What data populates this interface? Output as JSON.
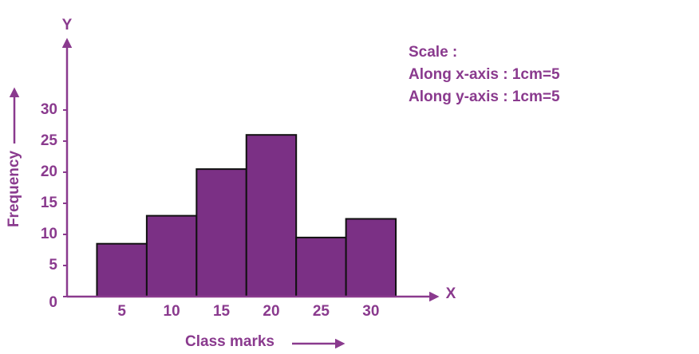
{
  "chart_data": {
    "type": "histogram",
    "x_axis_name": "X",
    "y_axis_name": "Y",
    "xlabel": "Class marks",
    "ylabel": "Frequency",
    "annotations": [
      "Scale :",
      "Along x-axis : 1cm=5",
      "Along y-axis : 1cm=5"
    ],
    "bins": [
      2.5,
      7.5,
      12.5,
      17.5,
      22.5,
      27.5,
      32.5
    ],
    "values": [
      8.5,
      13,
      20.5,
      26,
      9.5,
      12.5
    ],
    "color": "#7b3085",
    "xlim": [
      -0.5,
      36.5
    ],
    "ylim": [
      0,
      40
    ],
    "xticks": [
      5,
      10,
      15,
      20,
      25,
      30
    ],
    "yticks": [
      0,
      5,
      10,
      15,
      20,
      25,
      30
    ],
    "grid": false
  }
}
